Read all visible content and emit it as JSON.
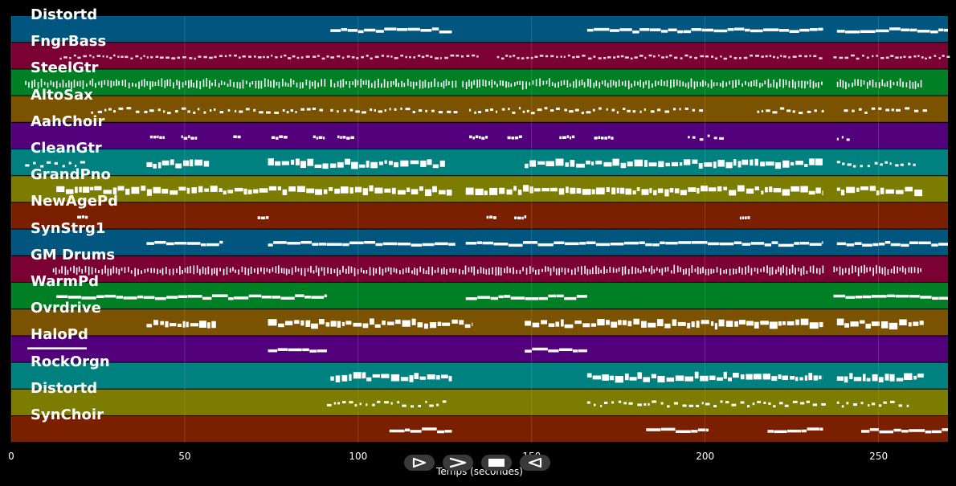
{
  "timeline": {
    "x_axis_label": "Temps (secondes)",
    "ticks": [
      {
        "value": 0,
        "label": "0"
      },
      {
        "value": 50,
        "label": "50"
      },
      {
        "value": 100,
        "label": "100"
      },
      {
        "value": 150,
        "label": "150"
      },
      {
        "value": 200,
        "label": "200"
      },
      {
        "value": 250,
        "label": "250"
      }
    ],
    "xlim": [
      0,
      270
    ]
  },
  "colors": {
    "background": "#000000",
    "note": "#ffffff",
    "grid": "#8aa4b8",
    "selected_underline": "#ffffff"
  },
  "selected_track": "HaloPd",
  "tracks": [
    {
      "label": "Distortd",
      "color": "#00567f",
      "regions": [
        [
          92,
          127,
          "line"
        ],
        [
          166,
          234,
          "line"
        ],
        [
          238,
          270,
          "line"
        ]
      ]
    },
    {
      "label": "FngrBass",
      "color": "#7b0033",
      "regions": [
        [
          14,
          135,
          "dash"
        ],
        [
          140,
          234,
          "dash"
        ],
        [
          237,
          270,
          "dash"
        ]
      ]
    },
    {
      "label": "SteelGtr",
      "color": "#007f24",
      "regions": [
        [
          4,
          91,
          "dense"
        ],
        [
          92,
          128,
          "dense"
        ],
        [
          130,
          234,
          "dense"
        ],
        [
          238,
          263,
          "dense"
        ]
      ]
    },
    {
      "label": "AltoSax",
      "color": "#7a5200",
      "regions": [
        [
          23,
          90,
          "sparse"
        ],
        [
          92,
          128,
          "sparse"
        ],
        [
          132,
          200,
          "sparse"
        ],
        [
          215,
          234,
          "sparse"
        ],
        [
          240,
          263,
          "sparse"
        ]
      ]
    },
    {
      "label": "AahChoir",
      "color": "#52007c",
      "regions": [
        [
          40,
          44,
          "blob"
        ],
        [
          49,
          53,
          "blob"
        ],
        [
          64,
          66,
          "blob"
        ],
        [
          75,
          79,
          "blob"
        ],
        [
          87,
          90,
          "blob"
        ],
        [
          94,
          99,
          "blob"
        ],
        [
          132,
          137,
          "blob"
        ],
        [
          143,
          147,
          "blob"
        ],
        [
          158,
          162,
          "blob"
        ],
        [
          168,
          173,
          "blob"
        ],
        [
          195,
          205,
          "sparse"
        ],
        [
          238,
          242,
          "sparse"
        ]
      ]
    },
    {
      "label": "CleanGtr",
      "color": "#00807e",
      "regions": [
        [
          4,
          21,
          "sparse"
        ],
        [
          39,
          57,
          "thick"
        ],
        [
          74,
          125,
          "thick"
        ],
        [
          148,
          234,
          "thick"
        ],
        [
          238,
          262,
          "sparse"
        ]
      ]
    },
    {
      "label": "GrandPno",
      "color": "#7b7c00",
      "regions": [
        [
          13,
          127,
          "thick"
        ],
        [
          131,
          234,
          "thick"
        ],
        [
          238,
          263,
          "thick"
        ]
      ]
    },
    {
      "label": "NewAgePd",
      "color": "#7a1f00",
      "regions": [
        [
          19,
          22,
          "blob"
        ],
        [
          71,
          74,
          "blob"
        ],
        [
          137,
          140,
          "blob"
        ],
        [
          145,
          148,
          "blob"
        ],
        [
          210,
          213,
          "blob"
        ]
      ]
    },
    {
      "label": "SynStrg1",
      "color": "#00567f",
      "regions": [
        [
          39,
          61,
          "line"
        ],
        [
          74,
          128,
          "line"
        ],
        [
          131,
          234,
          "line"
        ],
        [
          238,
          270,
          "line"
        ]
      ]
    },
    {
      "label": "GM Drums",
      "color": "#7b0033",
      "regions": [
        [
          12,
          234,
          "dense"
        ],
        [
          237,
          262,
          "dense"
        ]
      ]
    },
    {
      "label": "WarmPd",
      "color": "#007f24",
      "regions": [
        [
          13,
          91,
          "line"
        ],
        [
          131,
          166,
          "line"
        ],
        [
          237,
          270,
          "line"
        ]
      ]
    },
    {
      "label": "Ovrdrive",
      "color": "#7a5200",
      "regions": [
        [
          39,
          59,
          "thick"
        ],
        [
          74,
          133,
          "thick"
        ],
        [
          148,
          234,
          "thick"
        ],
        [
          238,
          263,
          "thick"
        ]
      ]
    },
    {
      "label": "HaloPd",
      "color": "#52007c",
      "regions": [
        [
          74,
          91,
          "line"
        ],
        [
          148,
          166,
          "line"
        ]
      ]
    },
    {
      "label": "RockOrgn",
      "color": "#00807e",
      "regions": [
        [
          92,
          127,
          "thick"
        ],
        [
          166,
          234,
          "thick"
        ],
        [
          238,
          263,
          "thick"
        ]
      ]
    },
    {
      "label": "Distortd",
      "color": "#7b7c00",
      "regions": [
        [
          91,
          125,
          "sparse"
        ],
        [
          166,
          234,
          "sparse"
        ],
        [
          238,
          259,
          "sparse"
        ]
      ]
    },
    {
      "label": "SynChoir",
      "color": "#7a1f00",
      "regions": [
        [
          109,
          127,
          "line"
        ],
        [
          183,
          201,
          "line"
        ],
        [
          218,
          234,
          "line"
        ],
        [
          245,
          270,
          "line"
        ]
      ]
    }
  ],
  "transport": {
    "buttons": [
      {
        "name": "play-button",
        "icon": "play-icon"
      },
      {
        "name": "fast-forward-button",
        "icon": "fast-forward-icon"
      },
      {
        "name": "stop-button",
        "icon": "stop-icon"
      },
      {
        "name": "rewind-button",
        "icon": "rewind-icon"
      }
    ]
  }
}
